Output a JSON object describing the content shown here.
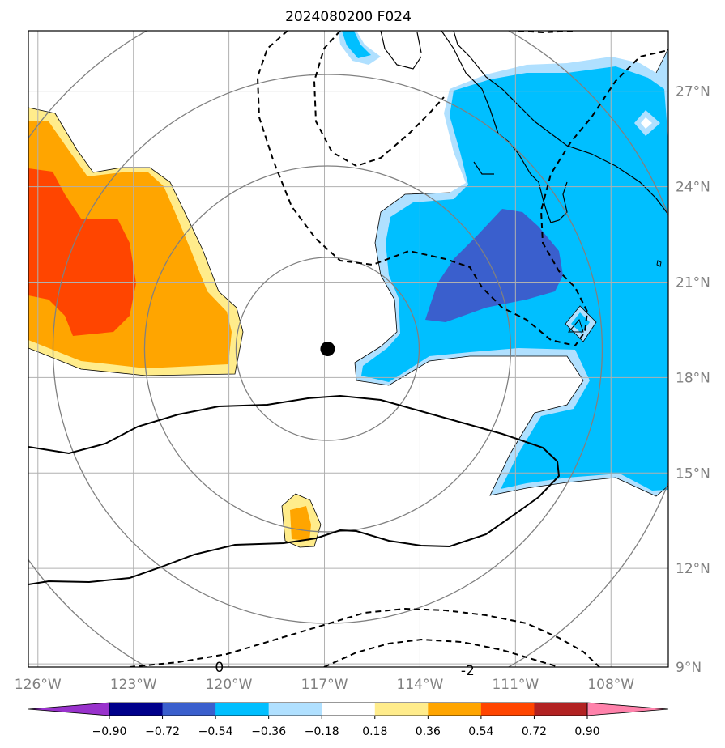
{
  "title": "2024080200 F024",
  "map": {
    "lon_range": [
      -126.3,
      -106.2
    ],
    "lat_range": [
      8.9,
      28.9
    ],
    "center_marker": {
      "lon": -116.9,
      "lat": 18.9
    },
    "range_rings": "concentric circles around center marker",
    "gridlines": true,
    "lon_ticks": [
      {
        "value": -126,
        "label": "126°W"
      },
      {
        "value": -123,
        "label": "123°W"
      },
      {
        "value": -120,
        "label": "120°W"
      },
      {
        "value": -117,
        "label": "117°W"
      },
      {
        "value": -114,
        "label": "114°W"
      },
      {
        "value": -111,
        "label": "111°W"
      },
      {
        "value": -108,
        "label": "108°W"
      }
    ],
    "lat_ticks": [
      {
        "value": 27,
        "label": "27°N"
      },
      {
        "value": 24,
        "label": "24°N"
      },
      {
        "value": 21,
        "label": "21°N"
      },
      {
        "value": 18,
        "label": "18°N"
      },
      {
        "value": 15,
        "label": "15°N"
      },
      {
        "value": 12,
        "label": "12°N"
      },
      {
        "value": 9,
        "label": "9°N"
      }
    ],
    "contour_labels": [
      {
        "text": "0",
        "lon": -120.3,
        "lat": 8.9
      },
      {
        "text": "-2",
        "lon": -112.5,
        "lat": 8.8
      }
    ]
  },
  "colorbar": {
    "levels": [
      "−0.90",
      "−0.72",
      "−0.54",
      "−0.36",
      "−0.18",
      "0.18",
      "0.36",
      "0.54",
      "0.72",
      "0.90"
    ],
    "colors": [
      "#9932cc",
      "#00008b",
      "#3a5fcd",
      "#00bfff",
      "#b0e0ff",
      "#ffffff",
      "#ffec8b",
      "#ffa500",
      "#ff4500",
      "#b22222",
      "#ff82ab"
    ]
  },
  "colors": {
    "frame": "#000000",
    "grid": "#b0b0b0",
    "ring": "#808080",
    "tick_label": "#808080"
  }
}
